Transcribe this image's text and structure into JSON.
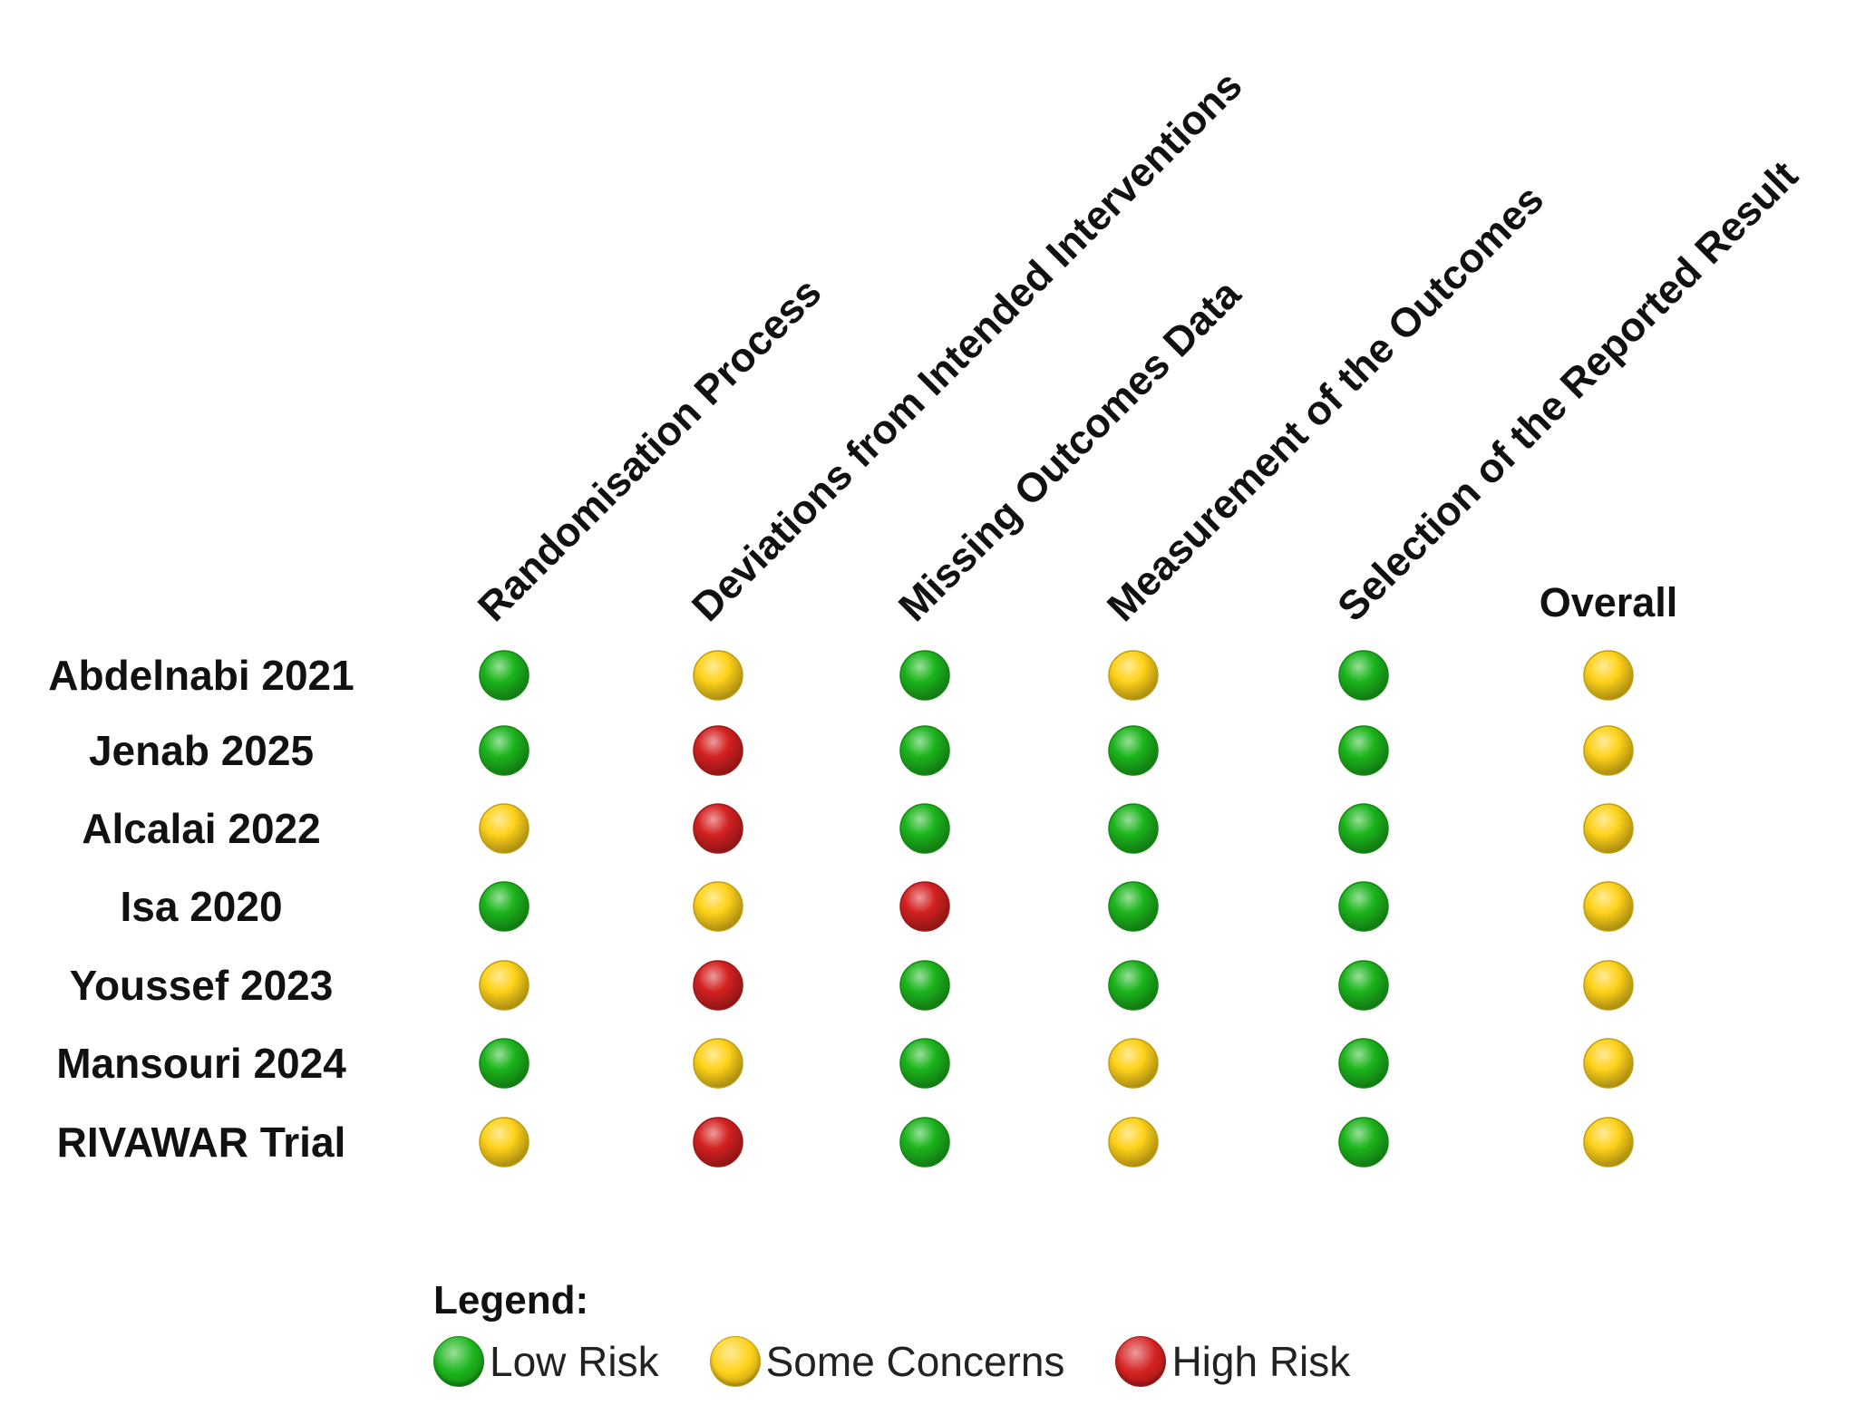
{
  "colors": {
    "low": "#1cb51c",
    "some": "#ffd21a",
    "high": "#d42121"
  },
  "domains": [
    {
      "key": "d1",
      "label": "Randomisation Process"
    },
    {
      "key": "d2",
      "label": "Deviations from Intended Interventions"
    },
    {
      "key": "d3",
      "label": "Missing Outcomes Data"
    },
    {
      "key": "d4",
      "label": "Measurement of the Outcomes"
    },
    {
      "key": "d5",
      "label": "Selection of the Reported Result"
    },
    {
      "key": "overall",
      "label": "Overall"
    }
  ],
  "studies": [
    {
      "name": "Abdelnabi 2021",
      "ratings": [
        "low",
        "some",
        "low",
        "some",
        "low",
        "some"
      ]
    },
    {
      "name": "Jenab 2025",
      "ratings": [
        "low",
        "high",
        "low",
        "low",
        "low",
        "some"
      ]
    },
    {
      "name": "Alcalai 2022",
      "ratings": [
        "some",
        "high",
        "low",
        "low",
        "low",
        "some"
      ]
    },
    {
      "name": "Isa 2020",
      "ratings": [
        "low",
        "some",
        "high",
        "low",
        "low",
        "some"
      ]
    },
    {
      "name": "Youssef 2023",
      "ratings": [
        "some",
        "high",
        "low",
        "low",
        "low",
        "some"
      ]
    },
    {
      "name": "Mansouri 2024",
      "ratings": [
        "low",
        "some",
        "low",
        "some",
        "low",
        "some"
      ]
    },
    {
      "name": "RIVAWAR Trial",
      "ratings": [
        "some",
        "high",
        "low",
        "some",
        "low",
        "some"
      ]
    }
  ],
  "legend": {
    "title": "Legend:",
    "items": [
      {
        "key": "low",
        "label": "Low Risk"
      },
      {
        "key": "some",
        "label": "Some Concerns"
      },
      {
        "key": "high",
        "label": "High Risk"
      }
    ]
  }
}
